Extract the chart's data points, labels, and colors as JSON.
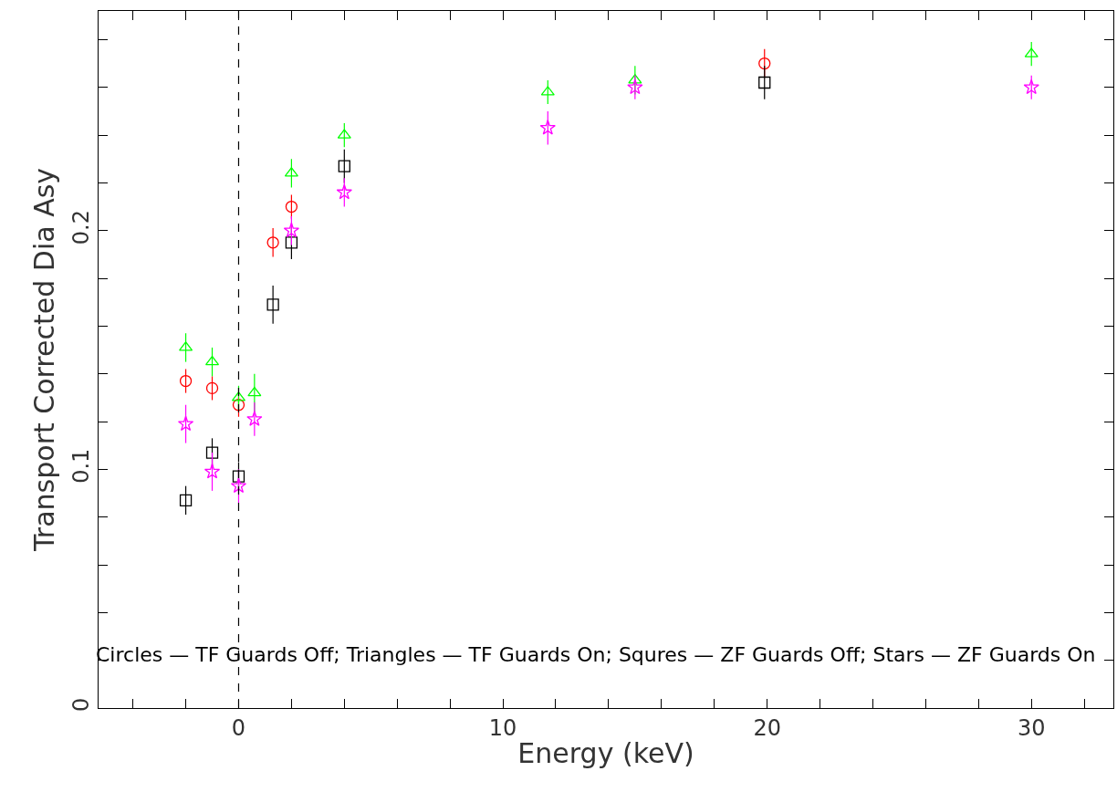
{
  "chart_data": {
    "type": "scatter",
    "xlabel": "Energy (keV)",
    "ylabel": "Transport Corrected Dia Asy",
    "xlim": [
      -5.3,
      33.1
    ],
    "ylim": [
      0,
      0.292
    ],
    "xticks": [
      {
        "value": -4,
        "label": null
      },
      {
        "value": -2,
        "label": null
      },
      0,
      {
        "value": 2,
        "label": null
      },
      {
        "value": 4,
        "label": null
      },
      {
        "value": 6,
        "label": null
      },
      {
        "value": 8,
        "label": null
      },
      10,
      {
        "value": 12,
        "label": null
      },
      {
        "value": 14,
        "label": null
      },
      {
        "value": 16,
        "label": null
      },
      {
        "value": 18,
        "label": null
      },
      20,
      {
        "value": 22,
        "label": null
      },
      {
        "value": 24,
        "label": null
      },
      {
        "value": 26,
        "label": null
      },
      {
        "value": 28,
        "label": null
      },
      30,
      {
        "value": 32,
        "label": null
      }
    ],
    "yticks": [
      0,
      {
        "value": 0.02,
        "label": null
      },
      {
        "value": 0.04,
        "label": null
      },
      {
        "value": 0.06,
        "label": null
      },
      {
        "value": 0.08,
        "label": null
      },
      0.1,
      {
        "value": 0.12,
        "label": null
      },
      {
        "value": 0.14,
        "label": null
      },
      {
        "value": 0.16,
        "label": null
      },
      {
        "value": 0.18,
        "label": null
      },
      0.2,
      {
        "value": 0.22,
        "label": null
      },
      {
        "value": 0.24,
        "label": null
      },
      {
        "value": 0.26,
        "label": null
      },
      {
        "value": 0.28,
        "label": null
      }
    ],
    "series": [
      {
        "color": "#ff0000",
        "marker": "circle",
        "x": [
          -2,
          -1,
          0,
          1.3,
          2,
          19.9
        ],
        "values": [
          0.137,
          0.134,
          0.127,
          0.195,
          0.21,
          0.27
        ],
        "errors": [
          0.005,
          0.005,
          0.005,
          0.006,
          0.005,
          0.006
        ]
      },
      {
        "color": "#00ff00",
        "marker": "triangle",
        "x": [
          -2,
          -1,
          0,
          0.6,
          2,
          4,
          11.7,
          15,
          30
        ],
        "values": [
          0.151,
          0.145,
          0.13,
          0.132,
          0.224,
          0.24,
          0.258,
          0.263,
          0.274
        ],
        "errors": [
          0.006,
          0.006,
          0.005,
          0.008,
          0.006,
          0.005,
          0.005,
          0.006,
          0.005
        ]
      },
      {
        "color": "#000000",
        "marker": "square",
        "x": [
          -2,
          -1,
          0,
          1.3,
          2,
          4,
          19.9
        ],
        "values": [
          0.087,
          0.107,
          0.097,
          0.169,
          0.195,
          0.227,
          0.262
        ],
        "errors": [
          0.006,
          0.006,
          0.006,
          0.008,
          0.007,
          0.007,
          0.007
        ]
      },
      {
        "color": "#ff00ff",
        "marker": "star",
        "x": [
          -2,
          -1,
          0,
          0.6,
          2,
          4,
          11.7,
          15,
          30
        ],
        "values": [
          0.119,
          0.099,
          0.093,
          0.121,
          0.2,
          0.216,
          0.243,
          0.26,
          0.26
        ],
        "errors": [
          0.008,
          0.008,
          0.007,
          0.007,
          0.006,
          0.006,
          0.007,
          0.005,
          0.005
        ]
      }
    ],
    "ref_lines": [
      {
        "axis": "x",
        "value": 0,
        "line_style": "dashed",
        "color": "#000000"
      }
    ],
    "annotations": [
      "Circles — TF Guards Off; Triangles — TF Guards On; Squres — ZF Guards Off; Stars — ZF Guards On"
    ]
  }
}
